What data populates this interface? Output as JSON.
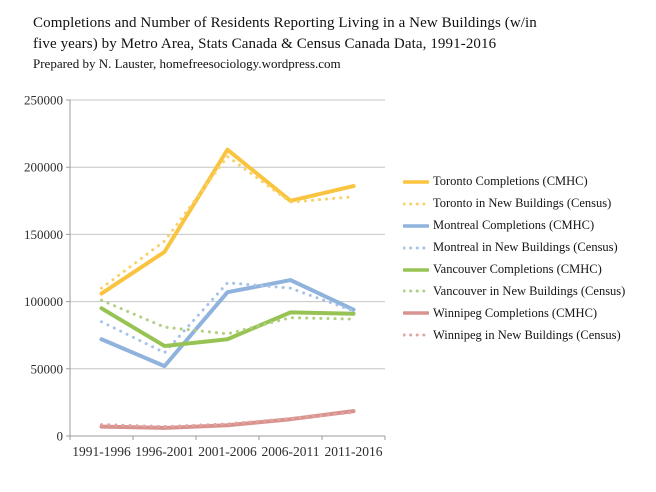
{
  "header": {
    "title": "Completions and Number of Residents Reporting Living in a New Buildings (w/in five years) by Metro Area, Stats Canada & Census Canada Data, 1991-2016",
    "subtitle": "Prepared by N. Lauster, homefreesociology.wordpress.com"
  },
  "chart_data": {
    "type": "line",
    "categories": [
      "1991-1996",
      "1996-2001",
      "2001-2006",
      "2006-2011",
      "2011-2016"
    ],
    "series": [
      {
        "name": "Toronto Completions (CMHC)",
        "style": "solid",
        "color": "#F9C440",
        "values": [
          106000,
          137000,
          213000,
          175000,
          186000
        ]
      },
      {
        "name": "Toronto in New Buildings (Census)",
        "style": "dotted",
        "color": "#FAD06A",
        "values": [
          110000,
          145000,
          208000,
          174000,
          178000
        ]
      },
      {
        "name": "Montreal Completions (CMHC)",
        "style": "solid",
        "color": "#8FB3DC",
        "values": [
          72000,
          52000,
          107000,
          116000,
          94000
        ]
      },
      {
        "name": "Montreal in New Buildings (Census)",
        "style": "dotted",
        "color": "#A6C3E6",
        "values": [
          85000,
          62000,
          114000,
          110000,
          93000
        ]
      },
      {
        "name": "Vancouver Completions (CMHC)",
        "style": "solid",
        "color": "#97C355",
        "values": [
          95000,
          67000,
          72000,
          92000,
          91000
        ]
      },
      {
        "name": "Vancouver in New Buildings (Census)",
        "style": "dotted",
        "color": "#AFD080",
        "values": [
          101000,
          81000,
          76000,
          88000,
          87000
        ]
      },
      {
        "name": "Winnipeg Completions (CMHC)",
        "style": "solid",
        "color": "#D9938F",
        "values": [
          7000,
          6000,
          8000,
          12500,
          18500
        ]
      },
      {
        "name": "Winnipeg in New Buildings (Census)",
        "style": "dotted",
        "color": "#E0A5A2",
        "values": [
          8500,
          7000,
          9000,
          13000,
          17500
        ]
      }
    ],
    "ylim": [
      0,
      250000
    ],
    "y_tick_step": 50000,
    "y_tick_labels": [
      "0",
      "50000",
      "100000",
      "150000",
      "200000",
      "250000"
    ],
    "grid": "horizontal",
    "legend_position": "right",
    "xlabel": "",
    "ylabel": ""
  },
  "colors": {
    "gridline": "#C6C6C6",
    "axis": "#9B9B9B",
    "tick_label": "#2E2E2E"
  }
}
